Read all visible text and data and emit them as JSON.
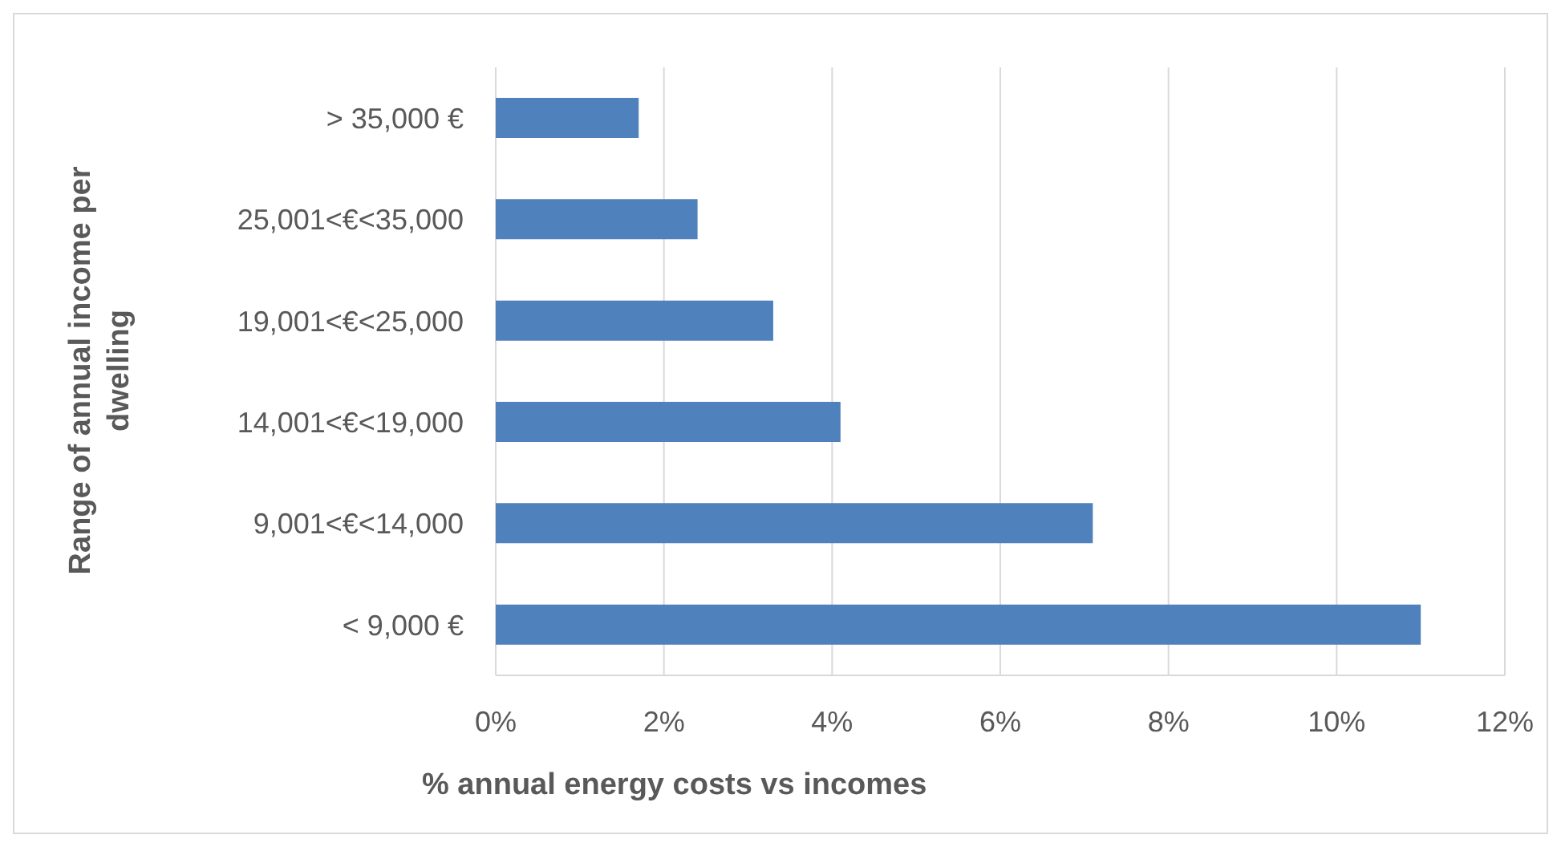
{
  "chart_data": {
    "type": "bar",
    "orientation": "horizontal",
    "xlabel": "% annual energy costs vs incomes",
    "ylabel": "Range of annual income per dwelling",
    "categories": [
      "> 35,000 €",
      "25,001<€<35,000",
      "19,001<€<25,000",
      "14,001<€<19,000",
      "9,001<€<14,000",
      "< 9,000 €"
    ],
    "values": [
      1.7,
      2.4,
      3.3,
      4.1,
      7.1,
      11.0
    ],
    "color": "#4f81bd",
    "xlim": [
      0,
      12
    ],
    "xticks": [
      {
        "value": 0,
        "label": "0%"
      },
      {
        "value": 2,
        "label": "2%"
      },
      {
        "value": 4,
        "label": "4%"
      },
      {
        "value": 6,
        "label": "6%"
      },
      {
        "value": 8,
        "label": "8%"
      },
      {
        "value": 10,
        "label": "10%"
      },
      {
        "value": 12,
        "label": "12%"
      }
    ],
    "grid": "x",
    "legend": false
  }
}
